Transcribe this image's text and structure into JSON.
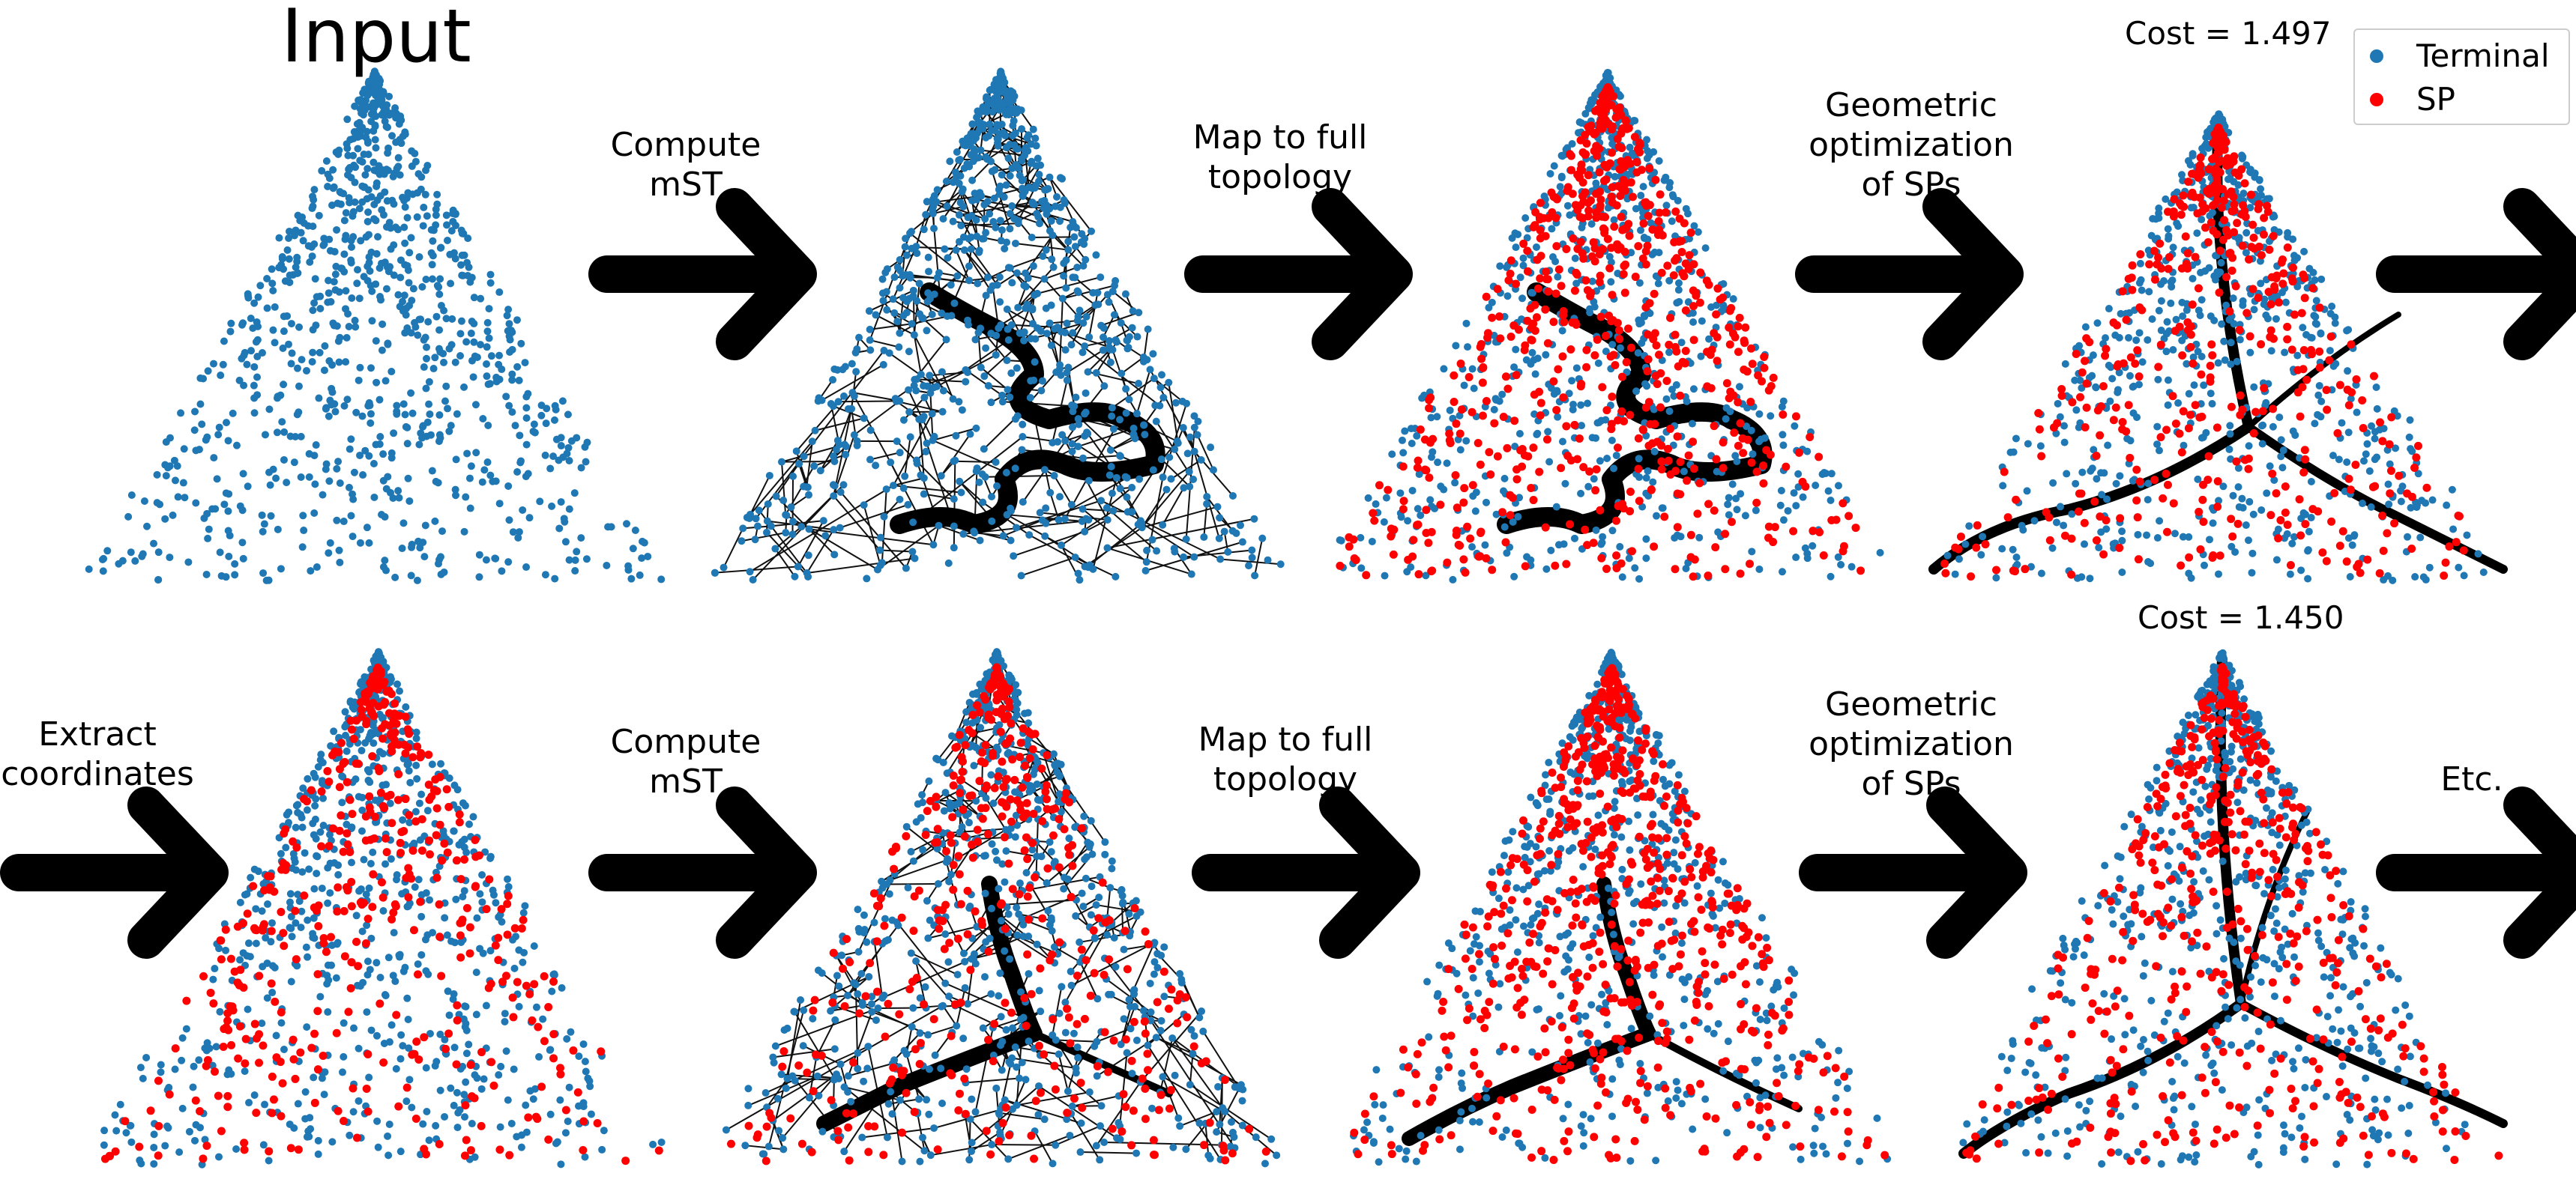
{
  "title": "Input",
  "costs": [
    "Cost = 1.497",
    "Cost = 1.450"
  ],
  "steps": {
    "compute_mst": "Compute\nmST",
    "map_topology": "Map to full\ntopology",
    "geometric_opt": "Geometric\noptimization\nof SPs",
    "extract_coords": "Extract\ncoordinates",
    "etc": "Etc."
  },
  "legend": [
    {
      "label": "Terminal",
      "color": "#1f77b4"
    },
    {
      "label": "SP",
      "color": "#ff0000"
    }
  ],
  "colors": {
    "terminal": "#1f77b4",
    "sp": "#ff0000",
    "edge": "#000000",
    "arrow": "#000000"
  },
  "icons": [
    "right-arrow-icon",
    "terminal-dot-icon",
    "sp-dot-icon"
  ]
}
